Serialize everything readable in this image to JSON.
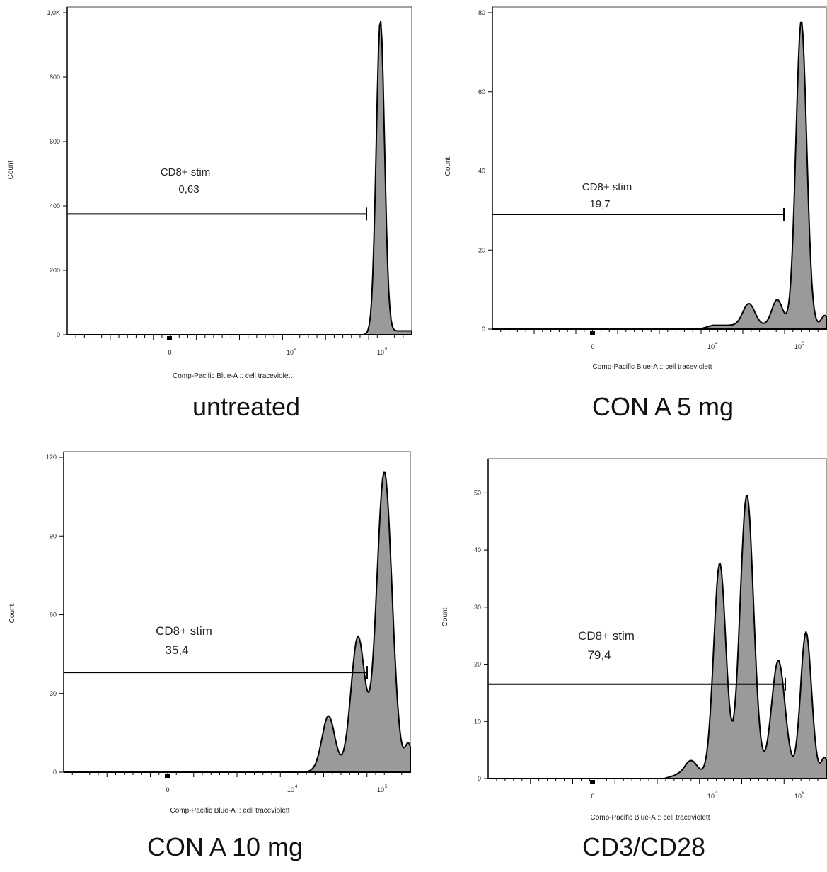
{
  "chart_data": [
    {
      "type": "histogram",
      "caption": "untreated",
      "ylabel": "Count",
      "xlabel": "Comp-Pacific Blue-A :: cell traceviolett",
      "yticks": [
        {
          "v": 0,
          "label": "0"
        },
        {
          "v": 200,
          "label": "200"
        },
        {
          "v": 400,
          "label": "400"
        },
        {
          "v": 600,
          "label": "600"
        },
        {
          "v": 800,
          "label": "800"
        },
        {
          "v": 1000,
          "label": "1,0K"
        }
      ],
      "xticks": [
        {
          "label": "0"
        },
        {
          "label": "10",
          "sup": "4"
        },
        {
          "label": "10",
          "sup": "5"
        }
      ],
      "ylim": [
        0,
        1000
      ],
      "gate": {
        "name": "CD8+ stim",
        "value": "0,63",
        "y": 375
      },
      "peaks": [
        {
          "x": 0.909,
          "height": 965,
          "width": 0.012
        }
      ],
      "baseline_start": 0.86
    },
    {
      "type": "histogram",
      "caption": "CON A 5 mg",
      "ylabel": "Count",
      "xlabel": "Comp-Pacific Blue-A :: cell traceviolett",
      "yticks": [
        {
          "v": 0,
          "label": "0"
        },
        {
          "v": 20,
          "label": "20"
        },
        {
          "v": 40,
          "label": "40"
        },
        {
          "v": 60,
          "label": "60"
        },
        {
          "v": 80,
          "label": "80"
        }
      ],
      "xticks": [
        {
          "label": "0"
        },
        {
          "label": "10",
          "sup": "4"
        },
        {
          "label": "10",
          "sup": "5"
        }
      ],
      "ylim": [
        0,
        80
      ],
      "gate": {
        "name": "CD8+ stim",
        "value": "19,7",
        "y": 29
      },
      "peaks": [
        {
          "x": 0.768,
          "height": 5.5,
          "width": 0.018
        },
        {
          "x": 0.853,
          "height": 6.5,
          "width": 0.016
        },
        {
          "x": 0.925,
          "height": 77,
          "width": 0.016
        },
        {
          "x": 0.995,
          "height": 2.5,
          "width": 0.01
        }
      ],
      "baseline_start": 0.62
    },
    {
      "type": "histogram",
      "caption": "CON A 10 mg",
      "ylabel": "Count",
      "xlabel": "Comp-Pacific Blue-A :: cell traceviolett",
      "yticks": [
        {
          "v": 0,
          "label": "0"
        },
        {
          "v": 30,
          "label": "30"
        },
        {
          "v": 60,
          "label": "60"
        },
        {
          "v": 90,
          "label": "90"
        },
        {
          "v": 120,
          "label": "120"
        }
      ],
      "xticks": [
        {
          "label": "0"
        },
        {
          "label": "10",
          "sup": "4"
        },
        {
          "label": "10",
          "sup": "5"
        }
      ],
      "ylim": [
        0,
        120
      ],
      "gate": {
        "name": "CD8+ stim",
        "value": "35,4",
        "y": 38
      },
      "peaks": [
        {
          "x": 0.764,
          "height": 20,
          "width": 0.018
        },
        {
          "x": 0.849,
          "height": 50,
          "width": 0.02
        },
        {
          "x": 0.925,
          "height": 113,
          "width": 0.022
        },
        {
          "x": 0.995,
          "height": 9,
          "width": 0.01
        }
      ],
      "baseline_start": 0.7
    },
    {
      "type": "histogram",
      "caption": "CD3/CD28",
      "ylabel": "Count",
      "xlabel": "Comp-Pacific Blue-A :: cell traceviolett",
      "yticks": [
        {
          "v": 0,
          "label": "0"
        },
        {
          "v": 10,
          "label": "10"
        },
        {
          "v": 20,
          "label": "20"
        },
        {
          "v": 30,
          "label": "30"
        },
        {
          "v": 40,
          "label": "40"
        },
        {
          "v": 50,
          "label": "50"
        }
      ],
      "xticks": [
        {
          "label": "0"
        },
        {
          "label": "10",
          "sup": "4"
        },
        {
          "label": "10",
          "sup": "5"
        }
      ],
      "ylim": [
        0,
        55
      ],
      "gate": {
        "name": "CD8+ stim",
        "value": "79,4",
        "y": 16.5
      },
      "peaks": [
        {
          "x": 0.6,
          "height": 2.5,
          "width": 0.018
        },
        {
          "x": 0.685,
          "height": 37,
          "width": 0.018
        },
        {
          "x": 0.765,
          "height": 49,
          "width": 0.02
        },
        {
          "x": 0.858,
          "height": 20,
          "width": 0.02
        },
        {
          "x": 0.94,
          "height": 25,
          "width": 0.016
        },
        {
          "x": 0.995,
          "height": 3,
          "width": 0.01
        }
      ],
      "baseline_start": 0.52
    }
  ]
}
